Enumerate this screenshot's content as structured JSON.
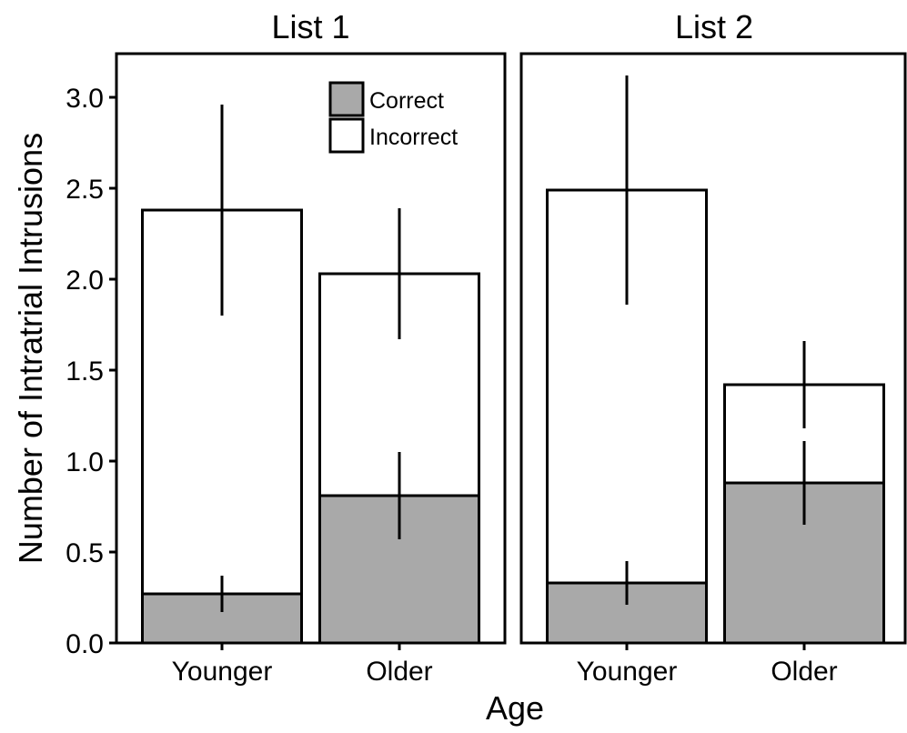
{
  "chart_data": {
    "type": "bar",
    "stacked": true,
    "xlabel": "Age",
    "ylabel": "Number of Intratrial Intrusions",
    "ylim": [
      0,
      3.2
    ],
    "yticks": [
      "0.0",
      "0.5",
      "1.0",
      "1.5",
      "2.0",
      "2.5",
      "3.0"
    ],
    "grid": false,
    "legend": {
      "placement": "top-right of first panel",
      "entries": [
        {
          "label": "Correct",
          "color": "#a9a9a9"
        },
        {
          "label": "Incorrect",
          "color": "#ffffff"
        }
      ]
    },
    "panels": [
      {
        "title": "List 1",
        "categories": [
          "Younger",
          "Older"
        ],
        "series": [
          {
            "name": "Correct",
            "values": [
              0.27,
              0.81
            ],
            "error_low": [
              0.17,
              0.57
            ],
            "error_high": [
              0.37,
              1.05
            ]
          },
          {
            "name": "Incorrect",
            "values": [
              2.11,
              1.22
            ],
            "total": [
              2.38,
              2.03
            ],
            "error_low": [
              1.8,
              1.67
            ],
            "error_high": [
              2.96,
              2.39
            ]
          }
        ]
      },
      {
        "title": "List 2",
        "categories": [
          "Younger",
          "Older"
        ],
        "series": [
          {
            "name": "Correct",
            "values": [
              0.33,
              0.88
            ],
            "error_low": [
              0.21,
              0.65
            ],
            "error_high": [
              0.45,
              1.11
            ]
          },
          {
            "name": "Incorrect",
            "values": [
              2.16,
              0.54
            ],
            "total": [
              2.49,
              1.42
            ],
            "error_low": [
              1.86,
              1.18
            ],
            "error_high": [
              3.12,
              1.66
            ]
          }
        ]
      }
    ]
  }
}
